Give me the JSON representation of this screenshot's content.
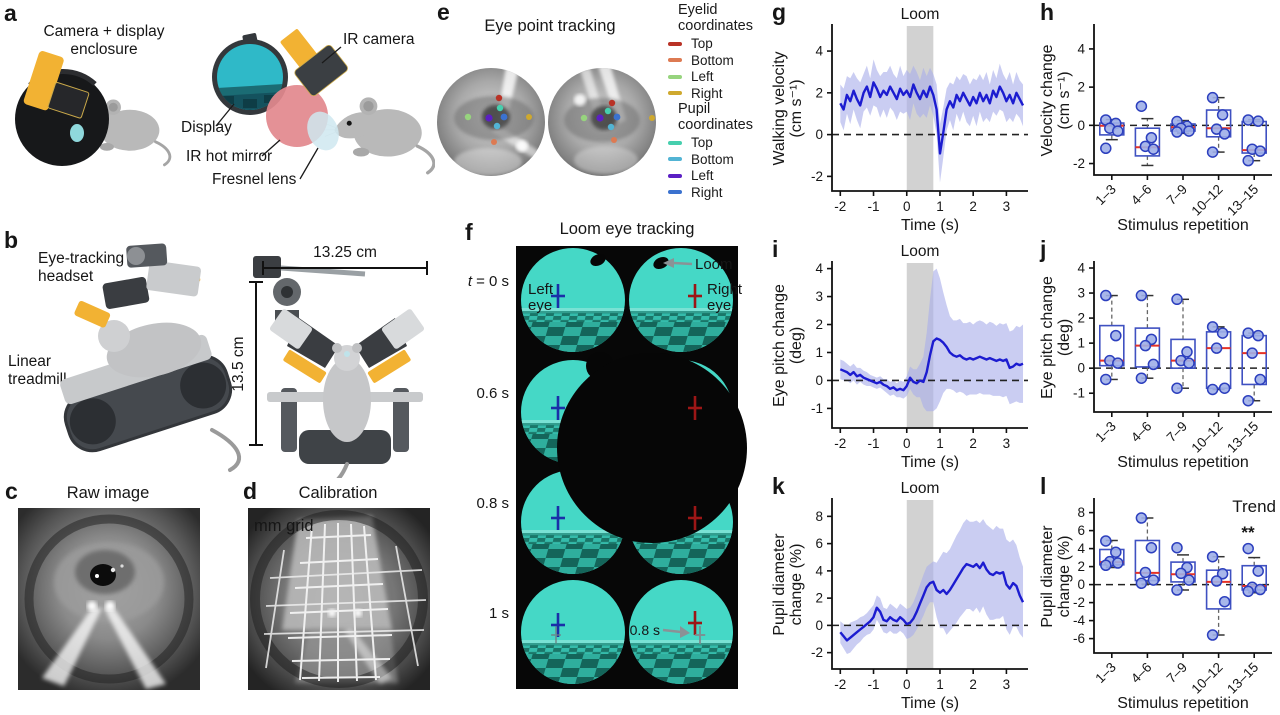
{
  "figure": {
    "background": "#ffffff",
    "panels": {
      "a": {
        "label": "a",
        "title_line1": "Camera + display",
        "title_line2": "enclosure",
        "ir_camera": "IR camera",
        "display": "Display",
        "ir_hot_mirror": "IR hot mirror",
        "fresnel_lens": "Fresnel lens"
      },
      "b": {
        "label": "b",
        "headset_line1": "Eye-tracking",
        "headset_line2": "headset",
        "treadmill_line1": "Linear",
        "treadmill_line2": "treadmill",
        "width_label": "13.25 cm",
        "height_label": "13.5 cm"
      },
      "c": {
        "label": "c",
        "title": "Raw image"
      },
      "d": {
        "label": "d",
        "title": "Calibration",
        "grid_label": "mm grid"
      },
      "e": {
        "label": "e",
        "title": "Eye point tracking",
        "legend": {
          "eyelid_line1": "Eyelid",
          "eyelid_line2": "coordinates",
          "pupil_line1": "Pupil",
          "pupil_line2": "coordinates",
          "eyelid_items": [
            {
              "label": "Top",
              "color": "#b93226"
            },
            {
              "label": "Bottom",
              "color": "#dd7a52"
            },
            {
              "label": "Left",
              "color": "#97d47e"
            },
            {
              "label": "Right",
              "color": "#cfa92e"
            }
          ],
          "pupil_items": [
            {
              "label": "Top",
              "color": "#46cfae"
            },
            {
              "label": "Bottom",
              "color": "#52b4d4"
            },
            {
              "label": "Left",
              "color": "#5b1fc4"
            },
            {
              "label": "Right",
              "color": "#3b72cf"
            }
          ]
        }
      },
      "f": {
        "label": "f",
        "title": "Loom eye tracking",
        "t_var": "t",
        "t_rest": "= 0 s",
        "row2": "0.6 s",
        "row3": "0.8 s",
        "row4": "1 s",
        "left_line1": "Left",
        "left_line2": "eye",
        "right_line1": "Right",
        "right_line2": "eye",
        "loom_label": "Loom",
        "saccade_label": "0.8 s"
      }
    }
  },
  "chart_data": [
    {
      "panel_label": "g",
      "type": "line",
      "title": "",
      "xlabel": "Time (s)",
      "ylabel": [
        "Walking velocity",
        "(cm s⁻¹)"
      ],
      "xlim": [
        -2.25,
        3.65
      ],
      "ylim": [
        -2.7,
        5.2
      ],
      "xticks": [
        -2,
        -1,
        0,
        1,
        2,
        3
      ],
      "yticks": [
        -2,
        0,
        2,
        4
      ],
      "loom": {
        "label": "Loom",
        "span": [
          0,
          0.8
        ]
      },
      "x_start": -2.0,
      "x_step": 0.1,
      "mean": [
        1.5,
        1.2,
        1.9,
        1.6,
        2.1,
        1.7,
        1.4,
        2.0,
        2.3,
        1.8,
        2.5,
        2.2,
        1.8,
        2.1,
        1.9,
        2.3,
        2.0,
        1.7,
        2.2,
        1.9,
        2.1,
        1.8,
        2.4,
        2.0,
        1.7,
        2.1,
        1.8,
        2.3,
        1.9,
        1.2,
        -0.9,
        0.1,
        1.2,
        1.6,
        1.3,
        1.9,
        1.6,
        2.0,
        1.7,
        1.4,
        1.8,
        1.5,
        2.0,
        1.6,
        1.9,
        1.5,
        2.1,
        1.8,
        2.3,
        2.0,
        1.6,
        1.9,
        1.5,
        2.0,
        1.7,
        1.4
      ],
      "band": [
        0.9,
        1.0,
        0.9,
        1.1,
        0.9,
        1.0,
        1.1,
        0.9,
        1.0,
        0.9,
        1.1,
        0.9,
        1.0,
        0.9,
        1.1,
        1.0,
        0.9,
        1.0,
        1.1,
        0.9,
        1.0,
        1.1,
        0.9,
        1.0,
        0.9,
        1.1,
        1.0,
        0.9,
        1.0,
        1.2,
        1.4,
        1.2,
        1.0,
        0.9,
        1.1,
        0.9,
        1.0,
        0.9,
        1.1,
        1.0,
        0.9,
        1.1,
        0.9,
        1.0,
        1.1,
        0.9,
        1.0,
        0.9,
        1.1,
        0.9,
        1.0,
        1.1,
        0.9,
        1.0,
        0.9,
        1.0
      ],
      "colors": {
        "line": "#1c1cd0",
        "band": "#a9aeea",
        "loom_band": "#d2d2d2",
        "loom_text": "#9b9b9b"
      }
    },
    {
      "panel_label": "h",
      "type": "box",
      "xlabel": "Stimulus repetition",
      "ylabel": [
        "Velocity change",
        "(cm s⁻¹)"
      ],
      "categories": [
        "1–3",
        "4–6",
        "7–9",
        "10–12",
        "13–15"
      ],
      "ylim": [
        -2.6,
        5.2
      ],
      "yticks": [
        -2,
        0,
        2,
        4
      ],
      "boxes": [
        {
          "lo": -0.75,
          "q1": -0.5,
          "med": -0.02,
          "q3": 0.12,
          "hi": 0.3,
          "points": [
            0.28,
            0.1,
            -0.15,
            -0.3,
            -1.2
          ]
        },
        {
          "lo": -2.1,
          "q1": -1.6,
          "med": -1.15,
          "q3": -0.15,
          "hi": 0.35,
          "points": [
            1.0,
            -0.65,
            -1.1,
            -1.25
          ]
        },
        {
          "lo": -0.42,
          "q1": -0.3,
          "med": -0.1,
          "q3": 0.07,
          "hi": 0.25,
          "points": [
            0.2,
            -0.05,
            -0.15,
            -0.3,
            -0.35
          ]
        },
        {
          "lo": -1.4,
          "q1": -0.6,
          "med": -0.15,
          "q3": 0.8,
          "hi": 1.45,
          "points": [
            1.45,
            0.55,
            -0.2,
            -0.45,
            -1.4
          ]
        },
        {
          "lo": -1.85,
          "q1": -1.45,
          "med": -1.3,
          "q3": 0.2,
          "hi": 0.3,
          "points": [
            0.28,
            0.22,
            -1.25,
            -1.35,
            -1.85
          ]
        }
      ],
      "colors": {
        "box": "#3f51c1",
        "median": "#e63226",
        "point": "#9fafe8"
      }
    },
    {
      "panel_label": "i",
      "type": "line",
      "xlabel": "Time (s)",
      "ylabel": [
        "Eye pitch change",
        "(deg)"
      ],
      "xlim": [
        -2.25,
        3.65
      ],
      "ylim": [
        -1.7,
        4.2
      ],
      "xticks": [
        -2,
        -1,
        0,
        1,
        2,
        3
      ],
      "yticks": [
        -1,
        0,
        1,
        2,
        3,
        4
      ],
      "loom": {
        "label": "Loom",
        "span": [
          0,
          0.8
        ]
      },
      "x_start": -2.0,
      "x_step": 0.1,
      "mean": [
        0.4,
        0.35,
        0.3,
        0.2,
        0.3,
        0.15,
        0.2,
        0.1,
        0.05,
        0.0,
        -0.05,
        -0.1,
        -0.05,
        -0.15,
        -0.2,
        -0.3,
        -0.25,
        -0.35,
        -0.3,
        -0.35,
        -0.2,
        0.1,
        -0.05,
        -0.1,
        0.0,
        -0.05,
        0.3,
        0.9,
        1.4,
        1.5,
        1.45,
        1.35,
        1.2,
        1.0,
        0.9,
        0.85,
        0.9,
        0.8,
        0.75,
        0.8,
        0.75,
        0.8,
        0.85,
        0.8,
        0.75,
        0.8,
        0.75,
        0.7,
        0.75,
        0.7,
        0.75,
        0.45,
        0.5,
        0.6,
        0.55,
        0.6
      ],
      "band": [
        0.35,
        0.35,
        0.3,
        0.3,
        0.3,
        0.3,
        0.25,
        0.25,
        0.25,
        0.2,
        0.2,
        0.2,
        0.2,
        0.2,
        0.25,
        0.25,
        0.25,
        0.25,
        0.3,
        0.3,
        0.35,
        0.4,
        0.45,
        0.5,
        0.6,
        0.9,
        1.4,
        2.0,
        2.5,
        2.5,
        2.2,
        1.8,
        1.5,
        1.3,
        1.25,
        1.3,
        1.3,
        1.25,
        1.3,
        1.3,
        1.25,
        1.3,
        1.3,
        1.3,
        1.25,
        1.3,
        1.3,
        1.25,
        1.3,
        1.3,
        1.3,
        1.3,
        1.3,
        1.35,
        1.35,
        1.4
      ],
      "colors": {
        "line": "#1c1cd0",
        "band": "#a9aeea",
        "loom_band": "#d2d2d2",
        "loom_text": "#9b9b9b"
      }
    },
    {
      "panel_label": "j",
      "type": "box",
      "xlabel": "Stimulus repetition",
      "ylabel": [
        "Eye pitch change",
        "(deg)"
      ],
      "categories": [
        "1–3",
        "4–6",
        "7–9",
        "10–12",
        "13–15"
      ],
      "ylim": [
        -1.75,
        4.2
      ],
      "yticks": [
        -1,
        0,
        1,
        2,
        3,
        4
      ],
      "boxes": [
        {
          "lo": -0.45,
          "q1": 0.1,
          "med": 0.3,
          "q3": 1.7,
          "hi": 2.9,
          "points": [
            2.9,
            1.3,
            0.3,
            0.2,
            -0.45
          ]
        },
        {
          "lo": -0.4,
          "q1": 0.05,
          "med": 0.9,
          "q3": 1.6,
          "hi": 2.9,
          "points": [
            2.9,
            1.15,
            0.9,
            0.15,
            -0.4
          ]
        },
        {
          "lo": -0.8,
          "q1": 0.0,
          "med": 0.3,
          "q3": 1.15,
          "hi": 2.75,
          "points": [
            2.75,
            0.65,
            0.3,
            0.2,
            -0.8
          ]
        },
        {
          "lo": -0.85,
          "q1": -0.8,
          "med": 0.8,
          "q3": 1.45,
          "hi": 1.65,
          "points": [
            1.65,
            1.4,
            0.8,
            -0.8,
            -0.85
          ]
        },
        {
          "lo": -1.3,
          "q1": -0.65,
          "med": 0.6,
          "q3": 1.3,
          "hi": 1.4,
          "points": [
            1.4,
            1.3,
            0.6,
            -0.45,
            -1.3
          ]
        }
      ],
      "colors": {
        "box": "#3f51c1",
        "median": "#e63226",
        "point": "#9fafe8"
      }
    },
    {
      "panel_label": "k",
      "type": "line",
      "xlabel": "Time (s)",
      "ylabel": [
        "Pupil diameter",
        "change (%)"
      ],
      "xlim": [
        -2.25,
        3.65
      ],
      "ylim": [
        -3.2,
        9.2
      ],
      "xticks": [
        -2,
        -1,
        0,
        1,
        2,
        3
      ],
      "yticks": [
        -2,
        0,
        2,
        4,
        6,
        8
      ],
      "loom": {
        "label": "Loom",
        "span": [
          0,
          0.8
        ]
      },
      "x_start": -2.0,
      "x_step": 0.1,
      "mean": [
        -0.5,
        -0.8,
        -1.1,
        -0.9,
        -0.7,
        -0.5,
        -0.3,
        -0.1,
        0.1,
        0.3,
        0.6,
        1.3,
        1.0,
        0.4,
        0.3,
        0.6,
        0.4,
        0.3,
        0.6,
        0.4,
        0.1,
        0.2,
        0.5,
        1.0,
        1.6,
        2.2,
        2.8,
        3.1,
        3.2,
        2.6,
        2.4,
        2.6,
        2.3,
        2.6,
        3.0,
        3.4,
        3.8,
        4.2,
        4.5,
        4.4,
        4.3,
        4.5,
        4.2,
        4.6,
        4.1,
        3.8,
        3.7,
        3.9,
        3.8,
        3.9,
        3.0,
        2.7,
        3.1,
        2.9,
        2.2,
        1.7
      ],
      "band": [
        0.8,
        0.9,
        1.0,
        1.1,
        1.0,
        0.9,
        0.9,
        0.8,
        0.8,
        0.9,
        0.9,
        0.9,
        1.0,
        0.9,
        0.9,
        1.0,
        1.0,
        0.9,
        1.0,
        1.0,
        1.1,
        1.1,
        1.2,
        1.3,
        1.4,
        1.5,
        1.5,
        1.4,
        1.5,
        2.0,
        2.6,
        2.8,
        3.0,
        3.0,
        3.1,
        3.2,
        3.2,
        3.3,
        3.3,
        3.2,
        3.3,
        3.2,
        3.3,
        3.2,
        3.3,
        3.4,
        3.3,
        3.4,
        3.3,
        3.2,
        3.3,
        3.4,
        3.2,
        3.0,
        2.8,
        2.6
      ],
      "colors": {
        "line": "#1c1cd0",
        "band": "#a9aeea",
        "loom_band": "#d2d2d2",
        "loom_text": "#9b9b9b"
      }
    },
    {
      "panel_label": "l",
      "type": "box",
      "xlabel": "Stimulus repetition",
      "ylabel": [
        "Pupil diameter",
        "change (%)"
      ],
      "categories": [
        "1–3",
        "4–6",
        "7–9",
        "10–12",
        "13–15"
      ],
      "ylim": [
        -7.6,
        9.4
      ],
      "yticks": [
        -6,
        -4,
        -2,
        0,
        2,
        4,
        6,
        8
      ],
      "annotation": {
        "label": "Trend",
        "stars": "**"
      },
      "boxes": [
        {
          "lo": 1.9,
          "q1": 2.2,
          "med": 2.5,
          "q3": 3.9,
          "hi": 4.9,
          "points": [
            4.85,
            3.6,
            2.55,
            2.4,
            2.15
          ]
        },
        {
          "lo": 0.05,
          "q1": 0.45,
          "med": 1.3,
          "q3": 4.9,
          "hi": 7.4,
          "points": [
            7.4,
            4.1,
            1.35,
            0.5,
            0.15
          ]
        },
        {
          "lo": -0.6,
          "q1": 0.3,
          "med": 1.15,
          "q3": 2.5,
          "hi": 3.3,
          "points": [
            4.1,
            1.9,
            1.25,
            0.5,
            -0.6
          ]
        },
        {
          "lo": -5.6,
          "q1": -2.7,
          "med": 0.3,
          "q3": 1.6,
          "hi": 3.1,
          "points": [
            3.1,
            1.2,
            0.4,
            -1.9,
            -5.6
          ]
        },
        {
          "lo": -0.9,
          "q1": -0.6,
          "med": -0.15,
          "q3": 2.1,
          "hi": 3.0,
          "points": [
            4.0,
            1.5,
            -0.3,
            -0.55,
            -0.75
          ]
        }
      ],
      "colors": {
        "box": "#3f51c1",
        "median": "#e63226",
        "point": "#9fafe8"
      }
    }
  ]
}
